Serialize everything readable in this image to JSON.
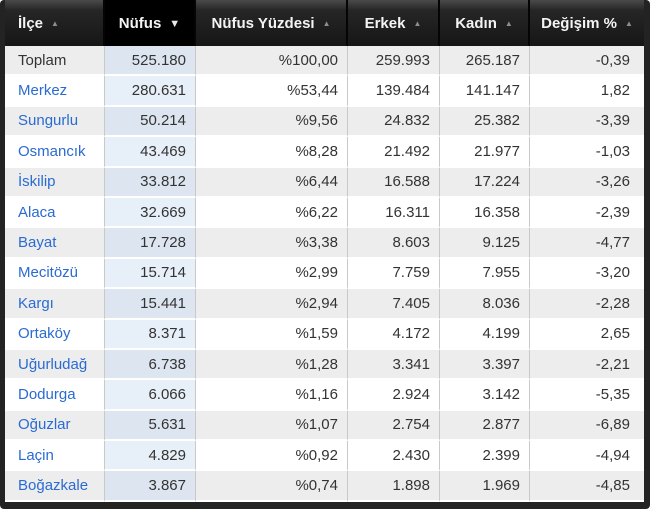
{
  "icons": {
    "sort_asc": "▲",
    "sort_desc": "▼"
  },
  "colors": {
    "header_bg": "#1a1a1a",
    "sorted_header_bg": "#000000",
    "header_text": "#f4f4f4",
    "frame": "#232323",
    "row_stripe": "#ededed",
    "nufus_column_tint": "#e7eff8",
    "link": "#2a6bd2",
    "cell_text": "#333333"
  },
  "table": {
    "columns": [
      {
        "key": "ilce",
        "label": "İlçe",
        "sorted": false,
        "direction": "asc"
      },
      {
        "key": "nufus",
        "label": "Nüfus",
        "sorted": true,
        "direction": "desc"
      },
      {
        "key": "yuzde",
        "label": "Nüfus Yüzdesi",
        "sorted": false,
        "direction": "asc"
      },
      {
        "key": "erkek",
        "label": "Erkek",
        "sorted": false,
        "direction": "asc"
      },
      {
        "key": "kadin",
        "label": "Kadın",
        "sorted": false,
        "direction": "asc"
      },
      {
        "key": "degisim",
        "label": "Değişim %",
        "sorted": false,
        "direction": "asc"
      }
    ],
    "rows": [
      {
        "ilce": "Toplam",
        "is_link": false,
        "nufus": "525.180",
        "yuzde": "%100,00",
        "erkek": "259.993",
        "kadin": "265.187",
        "degisim": "-0,39"
      },
      {
        "ilce": "Merkez",
        "is_link": true,
        "nufus": "280.631",
        "yuzde": "%53,44",
        "erkek": "139.484",
        "kadin": "141.147",
        "degisim": "1,82"
      },
      {
        "ilce": "Sungurlu",
        "is_link": true,
        "nufus": "50.214",
        "yuzde": "%9,56",
        "erkek": "24.832",
        "kadin": "25.382",
        "degisim": "-3,39"
      },
      {
        "ilce": "Osmancık",
        "is_link": true,
        "nufus": "43.469",
        "yuzde": "%8,28",
        "erkek": "21.492",
        "kadin": "21.977",
        "degisim": "-1,03"
      },
      {
        "ilce": "İskilip",
        "is_link": true,
        "nufus": "33.812",
        "yuzde": "%6,44",
        "erkek": "16.588",
        "kadin": "17.224",
        "degisim": "-3,26"
      },
      {
        "ilce": "Alaca",
        "is_link": true,
        "nufus": "32.669",
        "yuzde": "%6,22",
        "erkek": "16.311",
        "kadin": "16.358",
        "degisim": "-2,39"
      },
      {
        "ilce": "Bayat",
        "is_link": true,
        "nufus": "17.728",
        "yuzde": "%3,38",
        "erkek": "8.603",
        "kadin": "9.125",
        "degisim": "-4,77"
      },
      {
        "ilce": "Mecitözü",
        "is_link": true,
        "nufus": "15.714",
        "yuzde": "%2,99",
        "erkek": "7.759",
        "kadin": "7.955",
        "degisim": "-3,20"
      },
      {
        "ilce": "Kargı",
        "is_link": true,
        "nufus": "15.441",
        "yuzde": "%2,94",
        "erkek": "7.405",
        "kadin": "8.036",
        "degisim": "-2,28"
      },
      {
        "ilce": "Ortaköy",
        "is_link": true,
        "nufus": "8.371",
        "yuzde": "%1,59",
        "erkek": "4.172",
        "kadin": "4.199",
        "degisim": "2,65"
      },
      {
        "ilce": "Uğurludağ",
        "is_link": true,
        "nufus": "6.738",
        "yuzde": "%1,28",
        "erkek": "3.341",
        "kadin": "3.397",
        "degisim": "-2,21"
      },
      {
        "ilce": "Dodurga",
        "is_link": true,
        "nufus": "6.066",
        "yuzde": "%1,16",
        "erkek": "2.924",
        "kadin": "3.142",
        "degisim": "-5,35"
      },
      {
        "ilce": "Oğuzlar",
        "is_link": true,
        "nufus": "5.631",
        "yuzde": "%1,07",
        "erkek": "2.754",
        "kadin": "2.877",
        "degisim": "-6,89"
      },
      {
        "ilce": "Laçin",
        "is_link": true,
        "nufus": "4.829",
        "yuzde": "%0,92",
        "erkek": "2.430",
        "kadin": "2.399",
        "degisim": "-4,94"
      },
      {
        "ilce": "Boğazkale",
        "is_link": true,
        "nufus": "3.867",
        "yuzde": "%0,74",
        "erkek": "1.898",
        "kadin": "1.969",
        "degisim": "-4,85"
      }
    ]
  }
}
